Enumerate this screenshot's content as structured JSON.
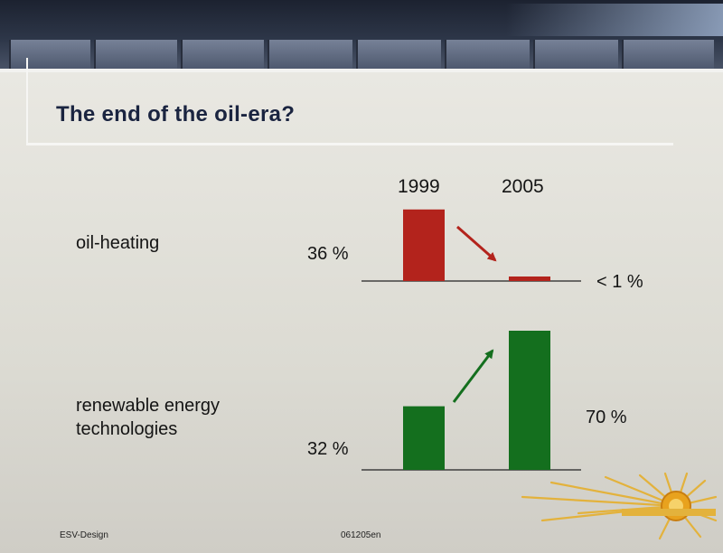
{
  "slide": {
    "title": "The end of the oil-era?",
    "footer_left": "ESV-Design",
    "footer_center": "061205en"
  },
  "chart_data": {
    "type": "bar",
    "categories": [
      "1999",
      "2005"
    ],
    "series": [
      {
        "name": "oil-heating",
        "values": [
          36,
          1
        ],
        "value_labels": [
          "36 %",
          "< 1 %"
        ],
        "color": "#b3231c"
      },
      {
        "name": "renewable energy technologies",
        "values": [
          32,
          70
        ],
        "value_labels": [
          "32 %",
          "70 %"
        ],
        "color": "#146f1e"
      }
    ],
    "title": "",
    "xlabel": "",
    "ylabel": "",
    "ylim": [
      0,
      70
    ]
  },
  "colors": {
    "title": "#1a2440",
    "oil": "#b3231c",
    "renewable": "#146f1e"
  }
}
